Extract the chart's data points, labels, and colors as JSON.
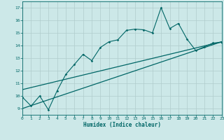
{
  "xlabel": "Humidex (Indice chaleur)",
  "bg_color": "#cce8e8",
  "grid_color": "#b0cccc",
  "line_color": "#006666",
  "xlim": [
    0,
    23
  ],
  "ylim": [
    8.5,
    17.5
  ],
  "xticks": [
    0,
    1,
    2,
    3,
    4,
    5,
    6,
    7,
    8,
    9,
    10,
    11,
    12,
    13,
    14,
    15,
    16,
    17,
    18,
    19,
    20,
    21,
    22,
    23
  ],
  "yticks": [
    9,
    10,
    11,
    12,
    13,
    14,
    15,
    16,
    17
  ],
  "scatter_x": [
    0,
    1,
    2,
    3,
    4,
    5,
    6,
    7,
    8,
    9,
    10,
    11,
    12,
    13,
    14,
    15,
    16,
    17,
    18,
    19,
    20,
    21,
    22,
    23
  ],
  "scatter_y": [
    9.9,
    9.2,
    10.0,
    8.9,
    10.4,
    11.7,
    12.5,
    13.3,
    12.8,
    13.85,
    14.3,
    14.45,
    15.2,
    15.3,
    15.25,
    15.0,
    17.0,
    15.35,
    15.75,
    14.5,
    13.6,
    13.9,
    14.2,
    14.25
  ],
  "line1_x": [
    0,
    23
  ],
  "line1_y": [
    10.5,
    14.3
  ],
  "line2_x": [
    0,
    23
  ],
  "line2_y": [
    9.0,
    14.3
  ],
  "figwidth": 3.2,
  "figheight": 2.0,
  "dpi": 100
}
